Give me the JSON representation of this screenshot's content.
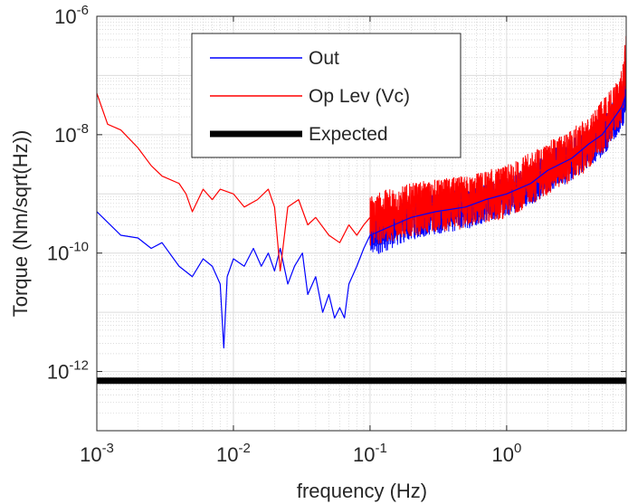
{
  "chart_data": {
    "type": "line",
    "xlabel": "frequency (Hz)",
    "ylabel": "Torque (Nm/sqrt(Hz))",
    "x_scale": "log",
    "y_scale": "log",
    "xlim": [
      0.001,
      7.5
    ],
    "ylim": [
      1e-13,
      1e-06
    ],
    "grid": true,
    "minor_grid": true,
    "legend_placement": "top-center",
    "x_ticks": [
      {
        "base": "10",
        "exp": "-3",
        "value": 0.001
      },
      {
        "base": "10",
        "exp": "-2",
        "value": 0.01
      },
      {
        "base": "10",
        "exp": "-1",
        "value": 0.1
      },
      {
        "base": "10",
        "exp": "0",
        "value": 1
      }
    ],
    "y_ticks": [
      {
        "base": "10",
        "exp": "-6",
        "value": 1e-06
      },
      {
        "base": "10",
        "exp": "-8",
        "value": 1e-08
      },
      {
        "base": "10",
        "exp": "-10",
        "value": 1e-10
      },
      {
        "base": "10",
        "exp": "-12",
        "value": 1e-12
      }
    ],
    "series": [
      {
        "name": "Out",
        "color": "#0000ff",
        "x": [
          0.001,
          0.0015,
          0.002,
          0.0025,
          0.003,
          0.004,
          0.005,
          0.006,
          0.007,
          0.008,
          0.0085,
          0.009,
          0.01,
          0.012,
          0.014,
          0.016,
          0.018,
          0.02,
          0.022,
          0.025,
          0.028,
          0.032,
          0.035,
          0.04,
          0.045,
          0.05,
          0.055,
          0.06,
          0.065,
          0.07,
          0.08,
          0.09,
          0.1,
          0.15,
          0.2,
          0.3,
          0.5,
          0.7,
          1.0,
          1.5,
          2.0,
          3.0,
          4.0,
          5.0,
          6.0,
          7.0,
          7.5
        ],
        "y": [
          5e-10,
          2e-10,
          1.8e-10,
          1.2e-10,
          1.5e-10,
          6e-11,
          4e-11,
          8e-11,
          6e-11,
          3e-11,
          2.5e-12,
          4e-11,
          8e-11,
          6e-11,
          1.2e-10,
          6e-11,
          1e-10,
          5e-11,
          1.2e-10,
          3e-11,
          6e-11,
          1e-10,
          2e-11,
          4e-11,
          1e-11,
          2e-11,
          8e-12,
          1.2e-11,
          8e-12,
          3e-11,
          6e-11,
          1.2e-10,
          2e-10,
          3e-10,
          4e-10,
          5e-10,
          6e-10,
          8e-10,
          1e-09,
          1.5e-09,
          2.5e-09,
          4e-09,
          7e-09,
          1e-08,
          1.8e-08,
          3e-08,
          5e-08
        ]
      },
      {
        "name": "Op Lev (Vc)",
        "color": "#ff0000",
        "x": [
          0.001,
          0.0012,
          0.0015,
          0.002,
          0.0025,
          0.003,
          0.004,
          0.0045,
          0.005,
          0.006,
          0.007,
          0.008,
          0.01,
          0.012,
          0.015,
          0.018,
          0.02,
          0.022,
          0.025,
          0.03,
          0.035,
          0.04,
          0.05,
          0.06,
          0.07,
          0.08,
          0.09,
          0.1,
          0.15,
          0.2,
          0.3,
          0.5,
          0.7,
          1.0,
          1.5,
          2.0,
          3.0,
          4.0,
          5.0,
          6.0,
          7.0,
          7.5
        ],
        "y": [
          5e-08,
          1.5e-08,
          1.2e-08,
          6e-09,
          3e-09,
          2e-09,
          1.5e-09,
          1e-09,
          5e-10,
          1.2e-09,
          8e-10,
          1.2e-09,
          1e-09,
          6e-10,
          8e-10,
          1.2e-09,
          6e-10,
          5e-11,
          6e-10,
          8e-10,
          3e-10,
          4e-10,
          2e-10,
          1.5e-10,
          3e-10,
          2e-10,
          3e-10,
          4e-10,
          5e-10,
          6e-10,
          7e-10,
          8e-10,
          1e-09,
          1.2e-09,
          2e-09,
          3e-09,
          5e-09,
          8e-09,
          1.5e-08,
          2.5e-08,
          5e-08,
          2e-07
        ]
      },
      {
        "name": "Expected",
        "color": "#000000",
        "x": [
          0.001,
          7.5
        ],
        "y": [
          7e-13,
          7e-13
        ]
      }
    ]
  }
}
